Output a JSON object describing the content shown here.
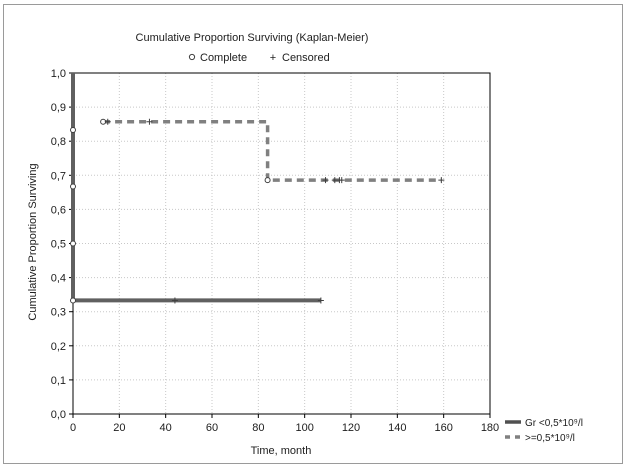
{
  "chart_data": {
    "type": "line",
    "title": "Cumulative Proportion Surviving (Kaplan-Meier)",
    "marker_legend": [
      {
        "symbol": "o",
        "label": "Complete"
      },
      {
        "symbol": "+",
        "label": "Censored"
      }
    ],
    "xlabel": "Time, month",
    "ylabel": "Cumulative Proportion Surviving",
    "xlim": [
      0,
      180
    ],
    "ylim": [
      0,
      1.0
    ],
    "x_ticks": [
      0,
      20,
      40,
      60,
      80,
      100,
      120,
      140,
      160,
      180
    ],
    "x_tick_labels": [
      "0",
      "20",
      "40",
      "60",
      "80",
      "100",
      "120",
      "140",
      "160",
      "180"
    ],
    "y_ticks": [
      0,
      0.1,
      0.2,
      0.3,
      0.4,
      0.5,
      0.6,
      0.7,
      0.8,
      0.9,
      1.0
    ],
    "y_tick_labels": [
      "0,0",
      "0,1",
      "0,2",
      "0,3",
      "0,4",
      "0,5",
      "0,6",
      "0,7",
      "0,8",
      "0,9",
      "1,0"
    ],
    "grid": true,
    "legend_position": "bottom-right",
    "series": [
      {
        "name": "Gr <0,5*10⁹/l",
        "style": "solid",
        "color": "#606060",
        "steps": [
          {
            "x": 0,
            "y": 1.0
          },
          {
            "x": 0,
            "y": 0.833
          },
          {
            "x": 0,
            "y": 0.667
          },
          {
            "x": 0,
            "y": 0.5
          },
          {
            "x": 0,
            "y": 0.333
          },
          {
            "x": 107,
            "y": 0.333
          }
        ],
        "complete_events": [
          {
            "x": 0,
            "y": 0.833
          },
          {
            "x": 0,
            "y": 0.667
          },
          {
            "x": 0,
            "y": 0.5
          },
          {
            "x": 0,
            "y": 0.333
          }
        ],
        "censored": [
          {
            "x": 44,
            "y": 0.333
          },
          {
            "x": 107,
            "y": 0.333
          }
        ]
      },
      {
        "name": ">=0,5*10⁹/l",
        "style": "dashed",
        "color": "#808080",
        "steps": [
          {
            "x": 13,
            "y": 0.857
          },
          {
            "x": 84,
            "y": 0.857
          },
          {
            "x": 84,
            "y": 0.686
          },
          {
            "x": 159,
            "y": 0.686
          }
        ],
        "complete_events": [
          {
            "x": 13,
            "y": 0.857
          },
          {
            "x": 84,
            "y": 0.686
          }
        ],
        "censored": [
          {
            "x": 15,
            "y": 0.857
          },
          {
            "x": 33,
            "y": 0.857
          },
          {
            "x": 109,
            "y": 0.686
          },
          {
            "x": 113,
            "y": 0.686
          },
          {
            "x": 115,
            "y": 0.686
          },
          {
            "x": 116,
            "y": 0.686
          },
          {
            "x": 159,
            "y": 0.686
          }
        ]
      }
    ]
  }
}
